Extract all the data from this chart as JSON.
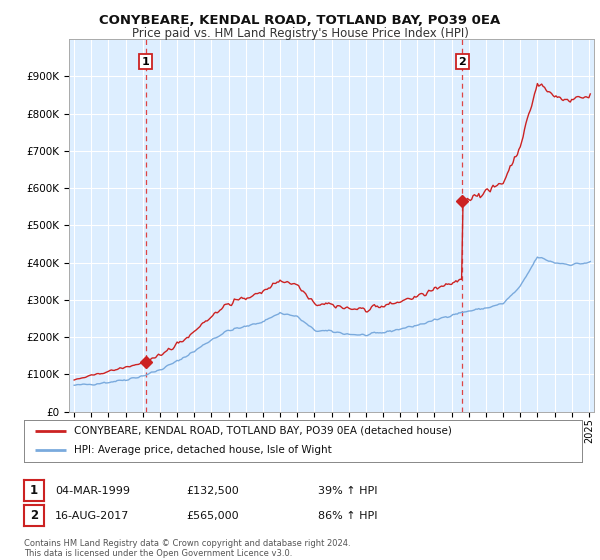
{
  "title": "CONYBEARE, KENDAL ROAD, TOTLAND BAY, PO39 0EA",
  "subtitle": "Price paid vs. HM Land Registry's House Price Index (HPI)",
  "legend_line1": "CONYBEARE, KENDAL ROAD, TOTLAND BAY, PO39 0EA (detached house)",
  "legend_line2": "HPI: Average price, detached house, Isle of Wight",
  "sale1_date": "04-MAR-1999",
  "sale1_price": "£132,500",
  "sale1_hpi": "39% ↑ HPI",
  "sale1_year": 1999.17,
  "sale1_value": 132500,
  "sale2_date": "16-AUG-2017",
  "sale2_price": "£565,000",
  "sale2_hpi": "86% ↑ HPI",
  "sale2_year": 2017.62,
  "sale2_value": 565000,
  "footer": "Contains HM Land Registry data © Crown copyright and database right 2024.\nThis data is licensed under the Open Government Licence v3.0.",
  "hpi_color": "#7aaadd",
  "price_color": "#cc2222",
  "vline_color": "#dd4444",
  "background_color": "#ffffff",
  "plot_bg_color": "#ddeeff",
  "grid_color": "#ffffff",
  "ylim": [
    0,
    1000000
  ],
  "xlim": [
    1994.7,
    2025.3
  ],
  "sale1_idx": 50,
  "sale2_idx": 272,
  "yticks": [
    0,
    100000,
    200000,
    300000,
    400000,
    500000,
    600000,
    700000,
    800000,
    900000
  ],
  "ytick_labels": [
    "£0",
    "£100K",
    "£200K",
    "£300K",
    "£400K",
    "£500K",
    "£600K",
    "£700K",
    "£800K",
    "£900K"
  ],
  "xticks": [
    1995,
    1996,
    1997,
    1998,
    1999,
    2000,
    2001,
    2002,
    2003,
    2004,
    2005,
    2006,
    2007,
    2008,
    2009,
    2010,
    2011,
    2012,
    2013,
    2014,
    2015,
    2016,
    2017,
    2018,
    2019,
    2020,
    2021,
    2022,
    2023,
    2024,
    2025
  ]
}
